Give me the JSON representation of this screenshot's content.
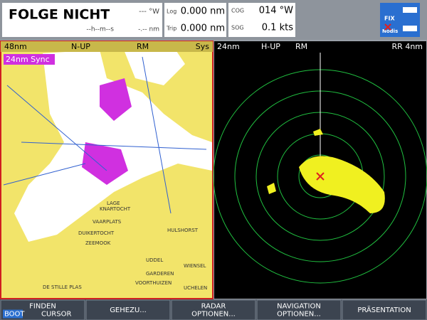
{
  "status_bar": {
    "waypoint": "FOLGE NICHT",
    "bearing": "--- °W",
    "time": "--h--m--s",
    "distance": "-.-- nm",
    "log_label": "Log",
    "log_value": "0.000 nm",
    "trip_label": "Trip",
    "trip_value": "0.000 nm",
    "cog_label": "COG",
    "cog_value": "014 °W",
    "sog_label": "SOG",
    "sog_value": "0.1 kts",
    "icon_labels": [
      "FIX",
      "Nodis"
    ]
  },
  "chart_pane": {
    "range": "48nm",
    "orientation": "N-UP",
    "motion": "RM",
    "mode": "Sys",
    "sync": "24nm Sync",
    "place_labels": [
      "LAGE",
      "KNARTOCHT",
      "VAARPLATS",
      "DUIKERTOCHT",
      "ZEEMOOK",
      "UDDEL",
      "GARDEREN",
      "DE STILLE PLAS",
      "HULSHORST",
      "WIENSEL",
      "VOORTHUIZEN",
      "UCHELEN"
    ]
  },
  "radar_pane": {
    "range": "24nm",
    "orientation": "H-UP",
    "motion": "RM",
    "rings": "RR 4nm"
  },
  "softkeys": [
    {
      "lines": [
        "FINDEN"
      ],
      "options": [
        "BOOT",
        "CURSOR"
      ]
    },
    {
      "lines": [
        "GEHEZU..."
      ]
    },
    {
      "lines": [
        "RADAR",
        "OPTIONEN..."
      ]
    },
    {
      "lines": [
        "NAVIGATION",
        "OPTIONEN..."
      ]
    },
    {
      "lines": [
        "PRÄSENTATION"
      ]
    }
  ]
}
